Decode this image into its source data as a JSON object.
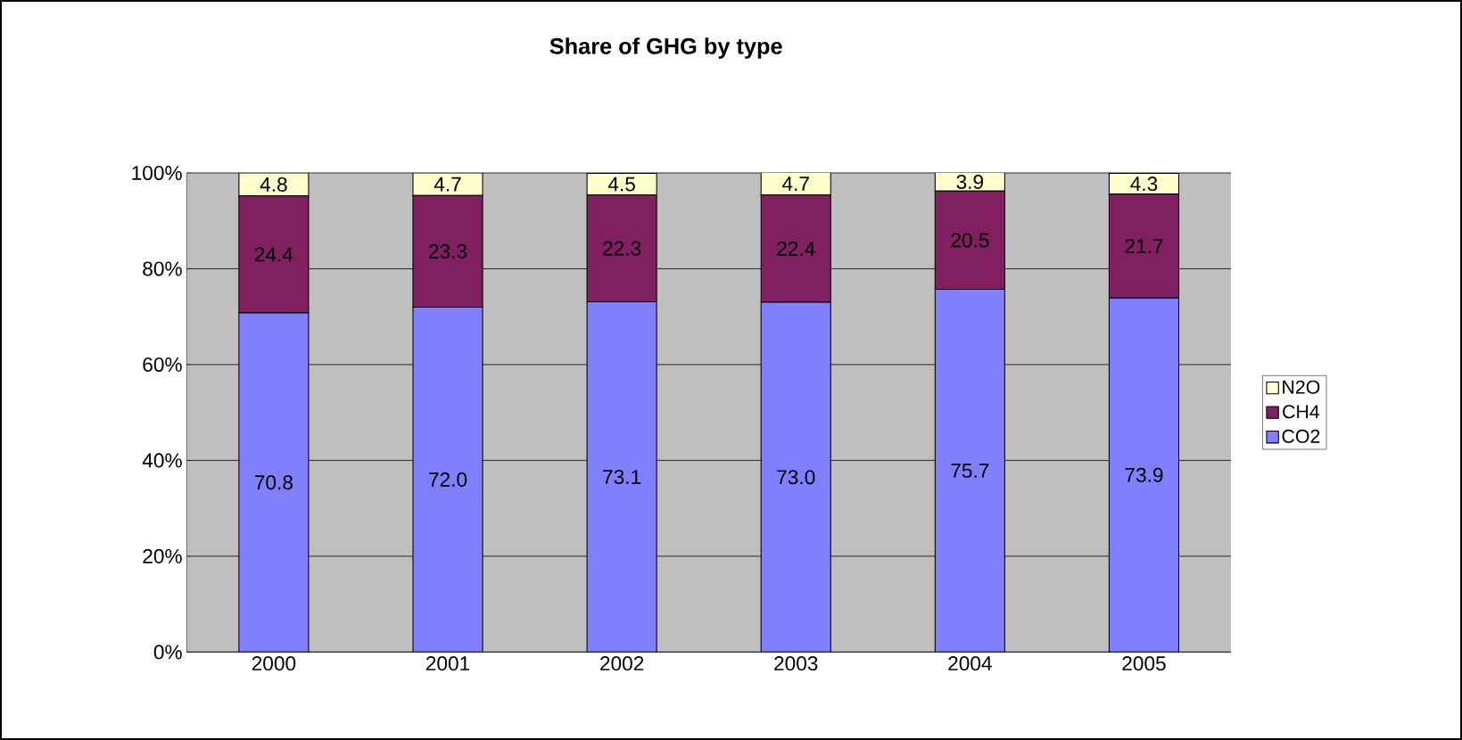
{
  "chart_data": {
    "type": "bar",
    "title": "Share of GHG by type",
    "categories": [
      "2000",
      "2001",
      "2002",
      "2003",
      "2004",
      "2005"
    ],
    "stacked": true,
    "ylim": [
      0,
      100
    ],
    "yticks": [
      {
        "value": 0,
        "label": "0%"
      },
      {
        "value": 20,
        "label": "20%"
      },
      {
        "value": 40,
        "label": "40%"
      },
      {
        "value": 60,
        "label": "60%"
      },
      {
        "value": 80,
        "label": "80%"
      },
      {
        "value": 100,
        "label": "100%"
      }
    ],
    "grid": "y",
    "legend": "right",
    "series": [
      {
        "name": "CO2",
        "color": "#8080ff",
        "values": [
          70.8,
          72.0,
          73.1,
          73.0,
          75.7,
          73.9
        ],
        "value_labels": [
          "70.8",
          "72.0",
          "73.1",
          "73.0",
          "75.7",
          "73.9"
        ]
      },
      {
        "name": "CH4",
        "color": "#802060",
        "values": [
          24.4,
          23.3,
          22.3,
          22.4,
          20.5,
          21.7
        ],
        "value_labels": [
          "24.4",
          "23.3",
          "22.3",
          "22.4",
          "20.5",
          "21.7"
        ]
      },
      {
        "name": "N2O",
        "color": "#ffffcc",
        "values": [
          4.8,
          4.7,
          4.5,
          4.7,
          3.9,
          4.3
        ],
        "value_labels": [
          "4.8",
          "4.7",
          "4.5",
          "4.7",
          "3.9",
          "4.3"
        ]
      }
    ]
  }
}
